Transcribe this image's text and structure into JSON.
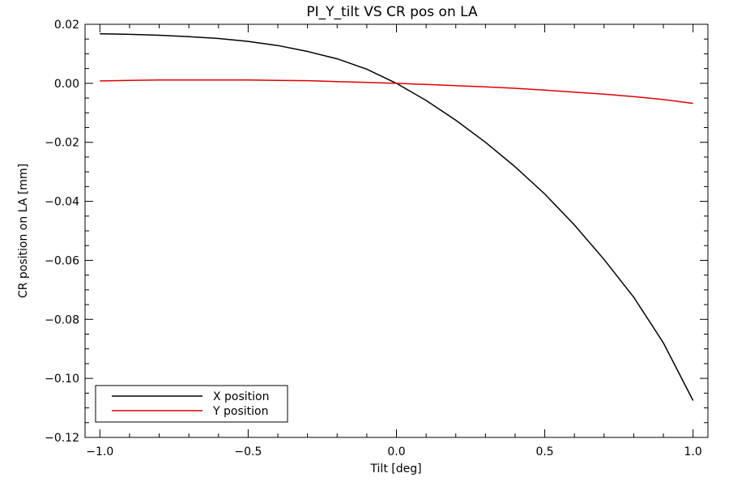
{
  "chart_data": {
    "type": "line",
    "title": "PI_Y_tilt VS CR pos on LA",
    "xlabel": "Tilt [deg]",
    "ylabel": "CR position on LA [mm]",
    "xlim": [
      -1.05,
      1.05
    ],
    "ylim": [
      -0.12,
      0.02
    ],
    "x_ticks": [
      -1.0,
      -0.5,
      0.0,
      0.5,
      1.0
    ],
    "x_tick_labels": [
      "−1.0",
      "−0.5",
      "0.0",
      "0.5",
      "1.0"
    ],
    "y_ticks": [
      0.02,
      0.0,
      -0.02,
      -0.04,
      -0.06,
      -0.08,
      -0.1,
      -0.12
    ],
    "y_tick_labels": [
      "0.02",
      "0.00",
      "−0.02",
      "−0.04",
      "−0.06",
      "−0.08",
      "−0.10",
      "−0.12"
    ],
    "grid": false,
    "legend_position": "bottom-left",
    "series": [
      {
        "name": "X position",
        "color": "#000000",
        "x": [
          -1.0,
          -0.9,
          -0.8,
          -0.7,
          -0.6,
          -0.5,
          -0.4,
          -0.3,
          -0.2,
          -0.1,
          0.0,
          0.1,
          0.2,
          0.3,
          0.4,
          0.5,
          0.6,
          0.7,
          0.8,
          0.9,
          1.0
        ],
        "y": [
          0.0168,
          0.0166,
          0.0163,
          0.0158,
          0.0152,
          0.0142,
          0.0128,
          0.0108,
          0.0083,
          0.0048,
          0.0,
          -0.0058,
          -0.0125,
          -0.02,
          -0.0283,
          -0.0375,
          -0.048,
          -0.0597,
          -0.0725,
          -0.088,
          -0.1075
        ]
      },
      {
        "name": "Y position",
        "color": "#e00000",
        "x": [
          -1.0,
          -0.9,
          -0.8,
          -0.7,
          -0.6,
          -0.5,
          -0.4,
          -0.3,
          -0.2,
          -0.1,
          0.0,
          0.1,
          0.2,
          0.3,
          0.4,
          0.5,
          0.6,
          0.7,
          0.8,
          0.9,
          1.0
        ],
        "y": [
          0.0008,
          0.001,
          0.0011,
          0.0011,
          0.0011,
          0.0011,
          0.001,
          0.0009,
          0.0006,
          0.0003,
          0.0,
          -0.0004,
          -0.0008,
          -0.0012,
          -0.0017,
          -0.0023,
          -0.003,
          -0.0037,
          -0.0045,
          -0.0055,
          -0.0068
        ]
      }
    ]
  }
}
